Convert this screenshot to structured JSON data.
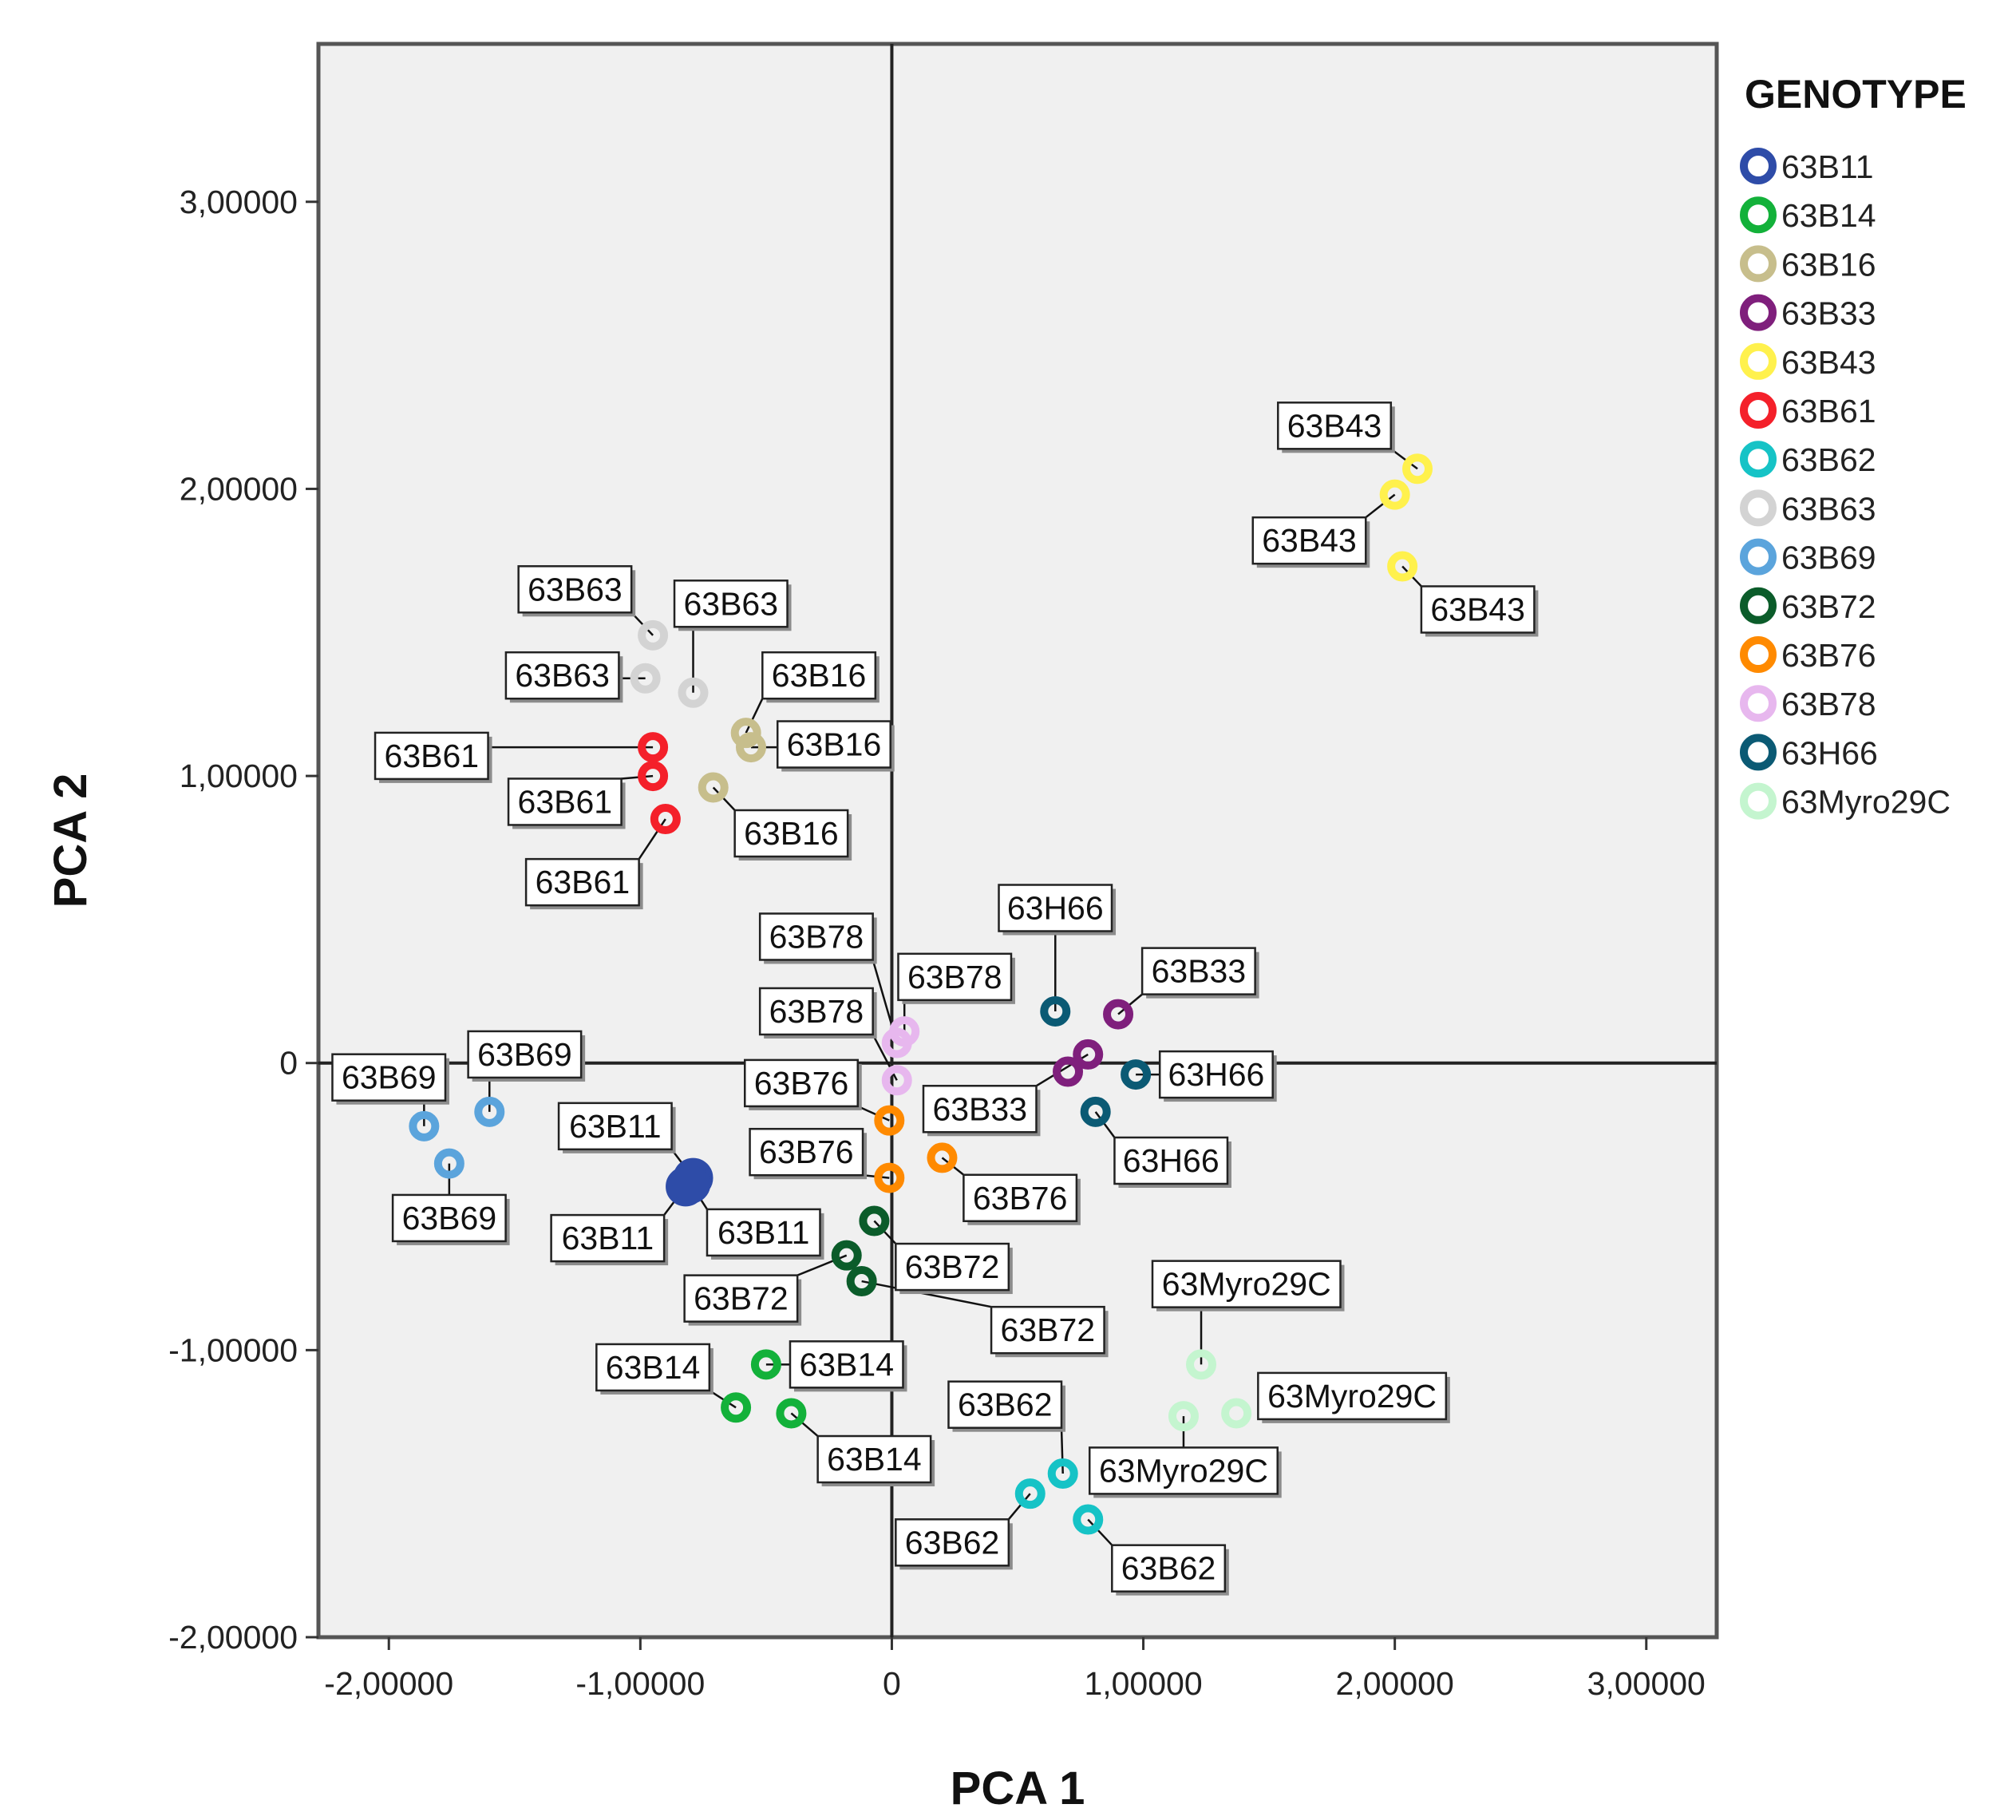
{
  "chart_data": {
    "type": "scatter",
    "xlabel": "PCA 1",
    "ylabel": "PCA 2",
    "xlim": [
      -2.28,
      3.28
    ],
    "ylim": [
      -2.0,
      3.55
    ],
    "xticks": [
      -2,
      -1,
      0,
      1,
      2,
      3
    ],
    "yticks": [
      -2,
      -1,
      0,
      1,
      2,
      3
    ],
    "xtick_labels": [
      "-2,00000",
      "-1,00000",
      "0",
      "1,00000",
      "2,00000",
      "3,00000"
    ],
    "ytick_labels": [
      "-2,00000",
      "-1,00000",
      "0",
      "1,00000",
      "2,00000",
      "3,00000"
    ],
    "reference_lines": {
      "x": 0,
      "y": 0
    },
    "legend": {
      "title": "GENOTYPE",
      "position": "right"
    },
    "series": [
      {
        "name": "63B11",
        "color": "#2E4CA8",
        "filled": true,
        "points": [
          {
            "x": -0.79,
            "y": -0.4,
            "label": "63B11",
            "lx": -1.1,
            "ly": -0.22
          },
          {
            "x": -0.82,
            "y": -0.43,
            "label": "63B11",
            "lx": -1.13,
            "ly": -0.61
          },
          {
            "x": -0.8,
            "y": -0.42,
            "label": "63B11",
            "lx": -0.51,
            "ly": -0.59
          }
        ]
      },
      {
        "name": "63B14",
        "color": "#13B13A",
        "filled": false,
        "points": [
          {
            "x": -0.5,
            "y": -1.05,
            "label": "63B14",
            "lx": -0.18,
            "ly": -1.05
          },
          {
            "x": -0.62,
            "y": -1.2,
            "label": "63B14",
            "lx": -0.95,
            "ly": -1.06
          },
          {
            "x": -0.4,
            "y": -1.22,
            "label": "63B14",
            "lx": -0.07,
            "ly": -1.38
          }
        ]
      },
      {
        "name": "63B16",
        "color": "#C7BE8C",
        "filled": false,
        "points": [
          {
            "x": -0.58,
            "y": 1.15,
            "label": "63B16",
            "lx": -0.29,
            "ly": 1.35
          },
          {
            "x": -0.56,
            "y": 1.1,
            "label": "63B16",
            "lx": -0.23,
            "ly": 1.11
          },
          {
            "x": -0.71,
            "y": 0.96,
            "label": "63B16",
            "lx": -0.4,
            "ly": 0.8
          }
        ]
      },
      {
        "name": "63B33",
        "color": "#7F1F7C",
        "filled": false,
        "points": [
          {
            "x": 0.9,
            "y": 0.17,
            "label": "63B33",
            "lx": 1.22,
            "ly": 0.32
          },
          {
            "x": 0.78,
            "y": 0.03,
            "label": "63B33",
            "lx": 0.35,
            "ly": -0.16
          },
          {
            "x": 0.7,
            "y": -0.03,
            "label": "",
            "lx": 0,
            "ly": 0
          }
        ]
      },
      {
        "name": "63B43",
        "color": "#FFF14D",
        "filled": false,
        "points": [
          {
            "x": 2.09,
            "y": 2.07,
            "label": "63B43",
            "lx": 1.76,
            "ly": 2.22
          },
          {
            "x": 2.0,
            "y": 1.98,
            "label": "63B43",
            "lx": 1.66,
            "ly": 1.82
          },
          {
            "x": 2.03,
            "y": 1.73,
            "label": "63B43",
            "lx": 2.33,
            "ly": 1.58
          }
        ]
      },
      {
        "name": "63B61",
        "color": "#F4202A",
        "filled": false,
        "points": [
          {
            "x": -0.95,
            "y": 1.1,
            "label": "63B61",
            "lx": -1.83,
            "ly": 1.07
          },
          {
            "x": -0.95,
            "y": 1.0,
            "label": "63B61",
            "lx": -1.3,
            "ly": 0.91
          },
          {
            "x": -0.9,
            "y": 0.85,
            "label": "63B61",
            "lx": -1.23,
            "ly": 0.63
          }
        ]
      },
      {
        "name": "63B62",
        "color": "#16C3C6",
        "filled": false,
        "points": [
          {
            "x": 0.68,
            "y": -1.43,
            "label": "63B62",
            "lx": 0.45,
            "ly": -1.19
          },
          {
            "x": 0.55,
            "y": -1.5,
            "label": "63B62",
            "lx": 0.24,
            "ly": -1.67
          },
          {
            "x": 0.78,
            "y": -1.59,
            "label": "63B62",
            "lx": 1.1,
            "ly": -1.76
          }
        ]
      },
      {
        "name": "63B63",
        "color": "#D3D3D3",
        "filled": false,
        "points": [
          {
            "x": -0.95,
            "y": 1.49,
            "label": "63B63",
            "lx": -1.26,
            "ly": 1.65
          },
          {
            "x": -0.98,
            "y": 1.34,
            "label": "63B63",
            "lx": -1.31,
            "ly": 1.35
          },
          {
            "x": -0.79,
            "y": 1.29,
            "label": "63B63",
            "lx": -0.64,
            "ly": 1.6
          }
        ]
      },
      {
        "name": "63B69",
        "color": "#5BA4DC",
        "filled": false,
        "points": [
          {
            "x": -1.6,
            "y": -0.17,
            "label": "63B69",
            "lx": -1.46,
            "ly": 0.03
          },
          {
            "x": -1.86,
            "y": -0.22,
            "label": "63B69",
            "lx": -2.0,
            "ly": -0.05
          },
          {
            "x": -1.76,
            "y": -0.35,
            "label": "63B69",
            "lx": -1.76,
            "ly": -0.54
          }
        ]
      },
      {
        "name": "63B72",
        "color": "#0B5C2A",
        "filled": false,
        "points": [
          {
            "x": -0.07,
            "y": -0.55,
            "label": "63B72",
            "lx": 0.24,
            "ly": -0.71
          },
          {
            "x": -0.18,
            "y": -0.67,
            "label": "63B72",
            "lx": -0.6,
            "ly": -0.82
          },
          {
            "x": -0.12,
            "y": -0.76,
            "label": "63B72",
            "lx": 0.62,
            "ly": -0.93
          }
        ]
      },
      {
        "name": "63B76",
        "color": "#FF8A00",
        "filled": false,
        "points": [
          {
            "x": -0.01,
            "y": -0.2,
            "label": "63B76",
            "lx": -0.36,
            "ly": -0.07
          },
          {
            "x": -0.01,
            "y": -0.4,
            "label": "63B76",
            "lx": -0.34,
            "ly": -0.31
          },
          {
            "x": 0.2,
            "y": -0.33,
            "label": "63B76",
            "lx": 0.51,
            "ly": -0.47
          }
        ]
      },
      {
        "name": "63B78",
        "color": "#E7B7EE",
        "filled": false,
        "points": [
          {
            "x": 0.05,
            "y": 0.11,
            "label": "63B78",
            "lx": 0.25,
            "ly": 0.3
          },
          {
            "x": 0.02,
            "y": 0.07,
            "label": "63B78",
            "lx": -0.3,
            "ly": 0.44
          },
          {
            "x": 0.02,
            "y": -0.06,
            "label": "63B78",
            "lx": -0.3,
            "ly": 0.18
          }
        ]
      },
      {
        "name": "63H66",
        "color": "#0B5A74",
        "filled": false,
        "points": [
          {
            "x": 0.65,
            "y": 0.18,
            "label": "63H66",
            "lx": 0.65,
            "ly": 0.54
          },
          {
            "x": 0.97,
            "y": -0.04,
            "label": "63H66",
            "lx": 1.29,
            "ly": -0.04
          },
          {
            "x": 0.81,
            "y": -0.17,
            "label": "63H66",
            "lx": 1.11,
            "ly": -0.34
          }
        ]
      },
      {
        "name": "63Myro29C",
        "color": "#C4F5CF",
        "filled": false,
        "points": [
          {
            "x": 1.23,
            "y": -1.05,
            "label": "63Myro29C",
            "lx": 1.41,
            "ly": -0.77
          },
          {
            "x": 1.37,
            "y": -1.22,
            "label": "63Myro29C",
            "lx": 1.83,
            "ly": -1.16
          },
          {
            "x": 1.16,
            "y": -1.23,
            "label": "63Myro29C",
            "lx": 1.16,
            "ly": -1.42
          }
        ]
      }
    ]
  }
}
